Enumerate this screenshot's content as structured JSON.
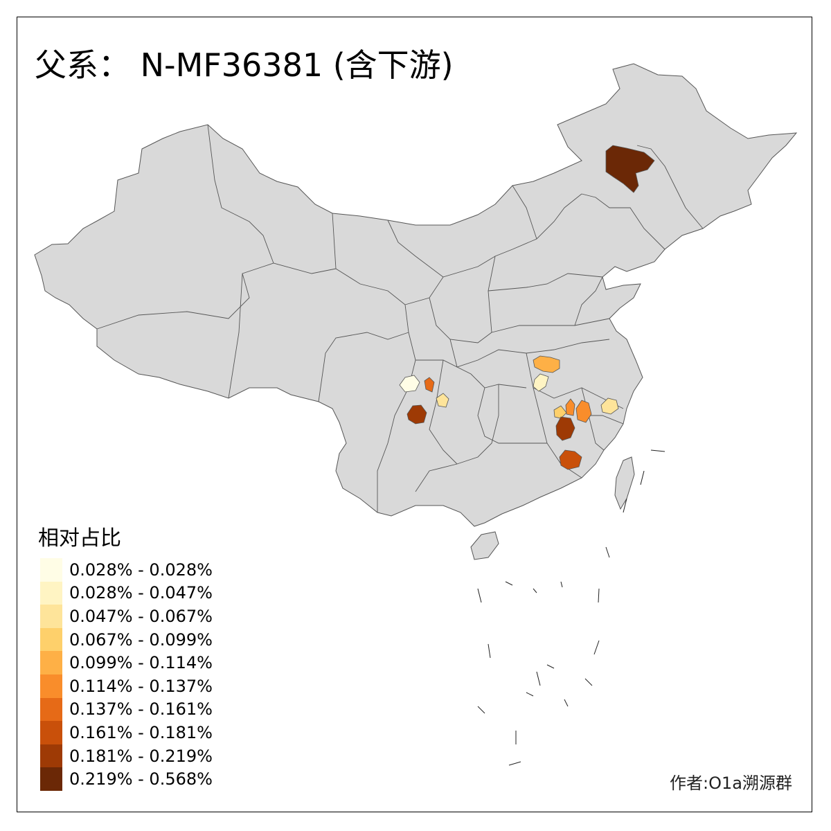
{
  "title": "父系： N-MF36381 (含下游)",
  "legend": {
    "title": "相对占比",
    "bins": [
      {
        "label": "0.028% - 0.028%",
        "color": "#fffde6"
      },
      {
        "label": "0.028% - 0.047%",
        "color": "#fff4c3"
      },
      {
        "label": "0.047% - 0.067%",
        "color": "#fee49a"
      },
      {
        "label": "0.067% - 0.099%",
        "color": "#fed06b"
      },
      {
        "label": "0.099% - 0.114%",
        "color": "#feb046"
      },
      {
        "label": "0.114% - 0.137%",
        "color": "#f98d2b"
      },
      {
        "label": "0.137% - 0.161%",
        "color": "#e66a17"
      },
      {
        "label": "0.161% - 0.181%",
        "color": "#c9500a"
      },
      {
        "label": "0.181% - 0.219%",
        "color": "#9e3a05"
      },
      {
        "label": "0.219% - 0.568%",
        "color": "#6b2806"
      }
    ]
  },
  "regions": [
    {
      "name": "northeast-hulunbuir",
      "bin": 9
    },
    {
      "name": "sichuan-chengdu-west",
      "bin": 0
    },
    {
      "name": "sichuan-guangyuan",
      "bin": 6
    },
    {
      "name": "chongqing",
      "bin": 2
    },
    {
      "name": "sichuan-liangshan",
      "bin": 8
    },
    {
      "name": "henan-xinyang",
      "bin": 4
    },
    {
      "name": "hubei-xiaogan",
      "bin": 1
    },
    {
      "name": "jiangxi-jiujiang",
      "bin": 5
    },
    {
      "name": "jiangxi-nanchang",
      "bin": 5
    },
    {
      "name": "jiangxi-xinyu",
      "bin": 3
    },
    {
      "name": "zhejiang-jinhua",
      "bin": 2
    },
    {
      "name": "jiangxi-jian",
      "bin": 8
    },
    {
      "name": "jiangxi-ganzhou",
      "bin": 7
    }
  ],
  "credit": "作者:O1a溯源群",
  "base_color": "#d9d9d9",
  "border_color": "#555555"
}
